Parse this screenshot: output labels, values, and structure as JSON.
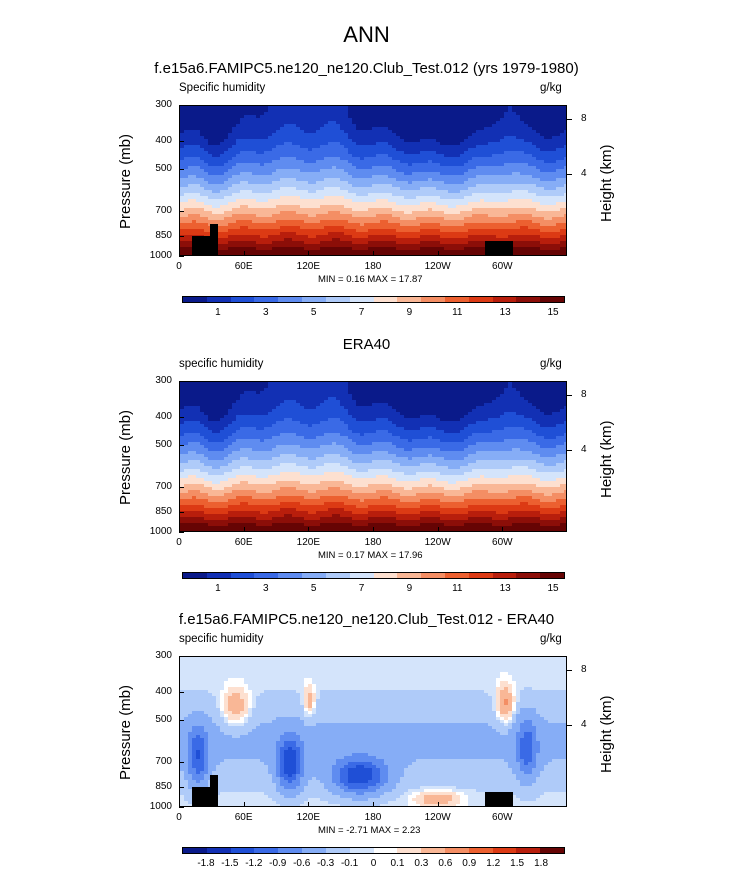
{
  "main_title": "ANN",
  "panels": [
    {
      "title": "f.e15a6.FAMIPC5.ne120_ne120.Club_Test.012 (yrs 1979-1980)",
      "var_label": "Specific humidity",
      "units": "g/kg",
      "minmax": "MIN =  0.16  MAX =  17.87",
      "colorbar_labels": [
        "1",
        "3",
        "5",
        "7",
        "9",
        "11",
        "13",
        "15"
      ]
    },
    {
      "title": "ERA40",
      "var_label": "specific humidity",
      "units": "g/kg",
      "minmax": "MIN =  0.17  MAX =  17.96",
      "colorbar_labels": [
        "1",
        "3",
        "5",
        "7",
        "9",
        "11",
        "13",
        "15"
      ]
    },
    {
      "title": "f.e15a6.FAMIPC5.ne120_ne120.Club_Test.012 - ERA40",
      "var_label": "specific humidity",
      "units": "g/kg",
      "minmax": "MIN = -2.71  MAX =  2.23",
      "colorbar_labels": [
        "-1.8",
        "-1.5",
        "-1.2",
        "-0.9",
        "-0.6",
        "-0.3",
        "-0.1",
        "0",
        "0.1",
        "0.3",
        "0.6",
        "0.9",
        "1.2",
        "1.5",
        "1.8"
      ]
    }
  ],
  "axes": {
    "ylabel_left": "Pressure (mb)",
    "ylabel_right": "Height (km)",
    "pressure_ticks": [
      "300",
      "400",
      "500",
      "700",
      "850",
      "1000"
    ],
    "height_ticks": [
      "8",
      "4"
    ],
    "lon_ticks": [
      "0",
      "60E",
      "120E",
      "180",
      "120W",
      "60W"
    ]
  },
  "colors": {
    "abs_palette": [
      "#0a1a8a",
      "#1230b4",
      "#1f4fd6",
      "#3a6ae6",
      "#5f8cf0",
      "#86adf6",
      "#afcbf9",
      "#d4e4fb",
      "#fde0d0",
      "#f9b796",
      "#f48e64",
      "#ec6030",
      "#dc3a14",
      "#b81e0c",
      "#8c0e08",
      "#660404"
    ],
    "diff_palette": [
      "#0a1a8a",
      "#1230b4",
      "#1f4fd6",
      "#3a6ae6",
      "#5f8cf0",
      "#86adf6",
      "#afcbf9",
      "#d4e4fb",
      "#ffffff",
      "#fde0d0",
      "#f9b796",
      "#f48e64",
      "#ec6030",
      "#dc3a14",
      "#b81e0c",
      "#660404"
    ]
  },
  "chart_data": [
    {
      "type": "heatmap",
      "title": "f.e15a6.FAMIPC5.ne120_ne120.Club_Test.012 (yrs 1979-1980)",
      "subtitle": "Specific humidity",
      "units": "g/kg",
      "xlabel": "",
      "ylabel": "Pressure (mb)",
      "y2label": "Height (km)",
      "xlim": [
        0,
        360
      ],
      "ylim": [
        1000,
        300
      ],
      "x_ticks": [
        "0",
        "60E",
        "120E",
        "180",
        "120W",
        "60W"
      ],
      "y_ticks": [
        300,
        400,
        500,
        700,
        850,
        1000
      ],
      "contour_levels": [
        1,
        2,
        3,
        4,
        5,
        6,
        7,
        8,
        9,
        10,
        11,
        12,
        13,
        14,
        15
      ],
      "min": 0.16,
      "max": 17.87
    },
    {
      "type": "heatmap",
      "title": "ERA40",
      "subtitle": "specific humidity",
      "units": "g/kg",
      "xlabel": "",
      "ylabel": "Pressure (mb)",
      "y2label": "Height (km)",
      "xlim": [
        0,
        360
      ],
      "ylim": [
        1000,
        300
      ],
      "x_ticks": [
        "0",
        "60E",
        "120E",
        "180",
        "120W",
        "60W"
      ],
      "y_ticks": [
        300,
        400,
        500,
        700,
        850,
        1000
      ],
      "contour_levels": [
        1,
        2,
        3,
        4,
        5,
        6,
        7,
        8,
        9,
        10,
        11,
        12,
        13,
        14,
        15
      ],
      "min": 0.17,
      "max": 17.96
    },
    {
      "type": "heatmap",
      "title": "f.e15a6.FAMIPC5.ne120_ne120.Club_Test.012 - ERA40",
      "subtitle": "specific humidity",
      "units": "g/kg",
      "xlabel": "",
      "ylabel": "Pressure (mb)",
      "y2label": "Height (km)",
      "xlim": [
        0,
        360
      ],
      "ylim": [
        1000,
        300
      ],
      "x_ticks": [
        "0",
        "60E",
        "120E",
        "180",
        "120W",
        "60W"
      ],
      "y_ticks": [
        300,
        400,
        500,
        700,
        850,
        1000
      ],
      "contour_levels": [
        -1.8,
        -1.5,
        -1.2,
        -0.9,
        -0.6,
        -0.3,
        -0.1,
        0,
        0.1,
        0.3,
        0.6,
        0.9,
        1.2,
        1.5,
        1.8
      ],
      "min": -2.71,
      "max": 2.23
    }
  ]
}
